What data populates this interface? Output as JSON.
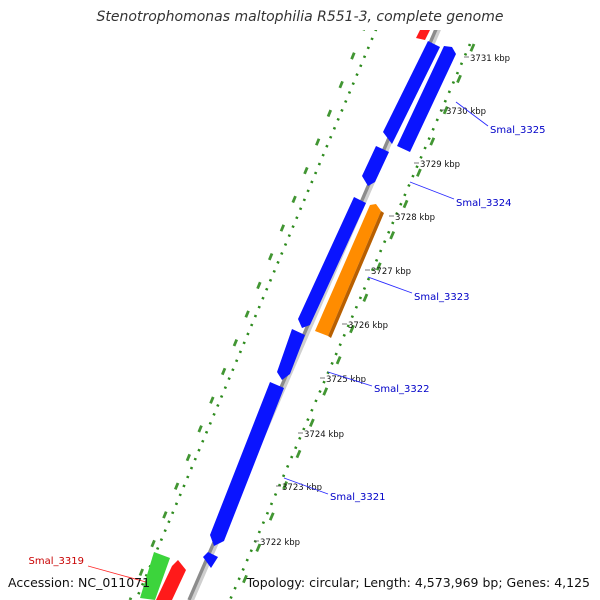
{
  "title": "Stenotrophomonas maltophilia R551-3, complete genome",
  "accession": "Accession: NC_011071",
  "summary": "Topology: circular; Length: 4,573,969 bp; Genes: 4,125",
  "colors": {
    "backbone": "#8c8c8c",
    "gc_dots": "#2e8b1e",
    "blue": "#0a14ff",
    "orange": "#ff8c00",
    "red": "#ff1a1a",
    "green": "#3cd43c",
    "label_blue": "#0000c8",
    "label_red": "#c80000"
  },
  "ticks": [
    {
      "label": "3731 kbp"
    },
    {
      "label": "3730 kbp"
    },
    {
      "label": "3729 kbp"
    },
    {
      "label": "3728 kbp"
    },
    {
      "label": "3727 kbp"
    },
    {
      "label": "3726 kbp"
    },
    {
      "label": "3725 kbp"
    },
    {
      "label": "3724 kbp"
    },
    {
      "label": "3723 kbp"
    },
    {
      "label": "3722 kbp"
    }
  ],
  "gene_labels": [
    {
      "text": "Smal_3325",
      "color": "blue"
    },
    {
      "text": "Smal_3324",
      "color": "blue"
    },
    {
      "text": "Smal_3323",
      "color": "blue"
    },
    {
      "text": "Smal_3322",
      "color": "blue"
    },
    {
      "text": "Smal_3321",
      "color": "blue"
    },
    {
      "text": "Smal_3319",
      "color": "red"
    }
  ]
}
